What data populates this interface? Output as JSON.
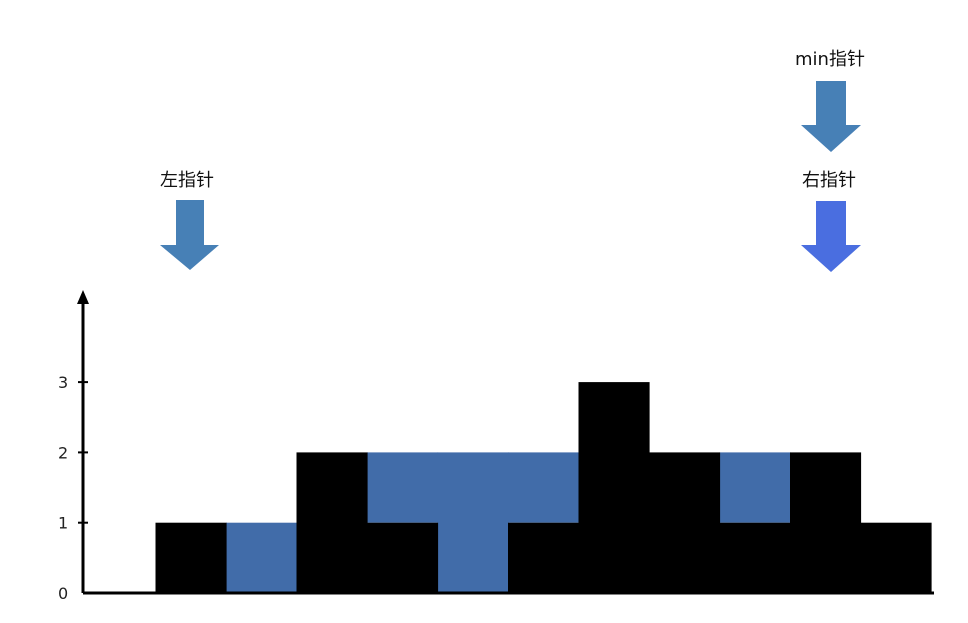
{
  "diagram": {
    "heights": [
      0,
      1,
      0,
      2,
      1,
      0,
      1,
      3,
      2,
      1,
      2,
      1
    ],
    "water": [
      0,
      0,
      1,
      0,
      1,
      2,
      1,
      0,
      0,
      1,
      0,
      0
    ],
    "y_ticks": [
      "0",
      "1",
      "2",
      "3"
    ],
    "colors": {
      "bar": "#000000",
      "water": "#416ca9",
      "axis": "#000000",
      "left_pointer": "#4780b6",
      "min_pointer": "#4780b6",
      "right_pointer": "#4a6ee0"
    }
  },
  "pointers": {
    "left_label": "左指针",
    "min_label": "min指针",
    "right_label": "右指针"
  }
}
